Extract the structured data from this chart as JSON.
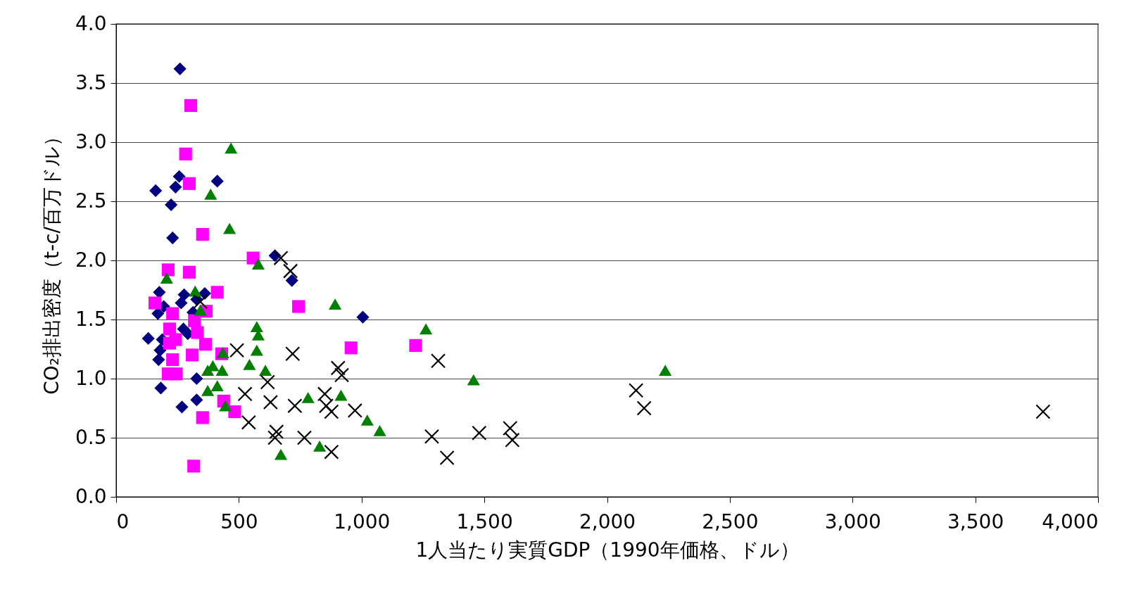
{
  "chart_data": {
    "type": "scatter",
    "xlabel": "1人当たり実質GDP（1990年価格、ドル）",
    "ylabel": "CO₂排出密度（t-c/百万ドル）",
    "xlim": [
      0,
      4000
    ],
    "ylim": [
      0,
      4.0
    ],
    "xticks": [
      0,
      500,
      {
        "value": 1000,
        "label": "1,000"
      },
      {
        "value": 1500,
        "label": "1,500"
      },
      {
        "value": 2000,
        "label": "2,000"
      },
      {
        "value": 2500,
        "label": "2,500"
      },
      {
        "value": 3000,
        "label": "3,000"
      },
      {
        "value": 3500,
        "label": "3,500"
      },
      {
        "value": 4000,
        "label": "4,000"
      }
    ],
    "yticks": [
      {
        "value": 0,
        "label": "0.0"
      },
      0.5,
      {
        "value": 1,
        "label": "1.0"
      },
      1.5,
      {
        "value": 2,
        "label": "2.0"
      },
      2.5,
      {
        "value": 3,
        "label": "3.0"
      },
      3.5,
      {
        "value": 4,
        "label": "4.0"
      }
    ],
    "grid": "y",
    "series": [
      {
        "color": "#000080",
        "marker": "diamond",
        "x": [
          260,
          161,
          257,
          242,
          412,
          224,
          230,
          647,
          716,
          1005,
          176,
          277,
          361,
          265,
          328,
          194,
          170,
          131,
          179,
          173,
          274,
          292,
          313,
          328,
          182,
          268,
          328,
          188
        ],
        "values": [
          3.62,
          2.59,
          2.71,
          2.62,
          2.67,
          2.47,
          2.19,
          2.04,
          1.83,
          1.52,
          1.73,
          1.71,
          1.72,
          1.64,
          1.67,
          1.61,
          1.55,
          1.34,
          1.24,
          1.16,
          1.42,
          1.38,
          1.56,
          1.0,
          0.92,
          0.76,
          0.82,
          1.33
        ]
      },
      {
        "color": "#ff00ff",
        "marker": "square",
        "x": [
          304,
          283,
          298,
          352,
          558,
          212,
          298,
          158,
          412,
          367,
          743,
          230,
          218,
          319,
          331,
          242,
          218,
          364,
          230,
          430,
          310,
          957,
          1220,
          212,
          245,
          438,
          483,
          352,
          316
        ],
        "values": [
          3.31,
          2.9,
          2.65,
          2.22,
          2.02,
          1.92,
          1.9,
          1.64,
          1.73,
          1.57,
          1.61,
          1.55,
          1.42,
          1.49,
          1.39,
          1.33,
          1.3,
          1.29,
          1.16,
          1.21,
          1.2,
          1.26,
          1.28,
          1.04,
          1.04,
          0.81,
          0.72,
          0.67,
          0.26
        ]
      },
      {
        "color": "#008000",
        "marker": "triangle",
        "x": [
          468,
          385,
          462,
          579,
          206,
          322,
          343,
          573,
          579,
          573,
          1262,
          892,
          435,
          394,
          373,
          432,
          543,
          608,
          412,
          373,
          445,
          782,
          916,
          1456,
          2237,
          1023,
          1074,
          671,
          829
        ],
        "values": [
          2.95,
          2.56,
          2.27,
          1.97,
          1.85,
          1.74,
          1.58,
          1.44,
          1.37,
          1.24,
          1.42,
          1.63,
          1.22,
          1.11,
          1.07,
          1.07,
          1.12,
          1.07,
          0.94,
          0.9,
          0.77,
          0.84,
          0.86,
          0.99,
          1.07,
          0.65,
          0.56,
          0.36,
          0.43
        ]
      },
      {
        "color": "#000000",
        "marker": "cross",
        "x": [
          343,
          671,
          710,
          492,
          719,
          525,
          540,
          617,
          629,
          728,
          653,
          647,
          767,
          850,
          856,
          877,
          904,
          919,
          973,
          877,
          1312,
          1286,
          1348,
          1479,
          1605,
          1614,
          2118,
          2151,
          3776
        ],
        "values": [
          1.65,
          2.02,
          1.91,
          1.24,
          1.21,
          0.87,
          0.63,
          0.97,
          0.8,
          0.77,
          0.55,
          0.5,
          0.5,
          0.87,
          0.77,
          0.72,
          1.09,
          1.03,
          0.73,
          0.38,
          1.15,
          0.51,
          0.33,
          0.54,
          0.58,
          0.48,
          0.9,
          0.75,
          0.72
        ]
      }
    ]
  }
}
